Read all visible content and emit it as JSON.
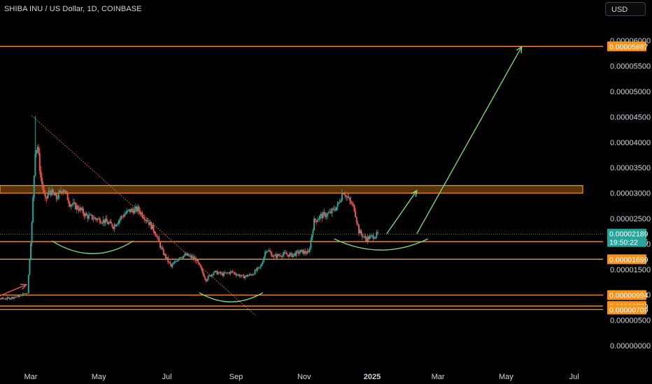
{
  "header": {
    "title": "SHIBA INU / US Dollar, 1D, COINBASE",
    "currency_button": "USD"
  },
  "colors": {
    "up": "#26a69a",
    "down": "#ef5350",
    "level": "#f7931a",
    "arrow_green": "#7bd67b",
    "trendline": "#e8772e",
    "price_line": "#26a69a"
  },
  "chart_data": {
    "type": "candlestick",
    "y_ticks": [
      "0.00006000",
      "0.00005500",
      "0.00005000",
      "0.00004500",
      "0.00004000",
      "0.00003500",
      "0.00003000",
      "0.00002500",
      "0.00002000",
      "0.00001500",
      "0.00001000",
      "0.00000500",
      "0.00000000"
    ],
    "x_ticks": [
      {
        "label": "Mar",
        "date": "2024-03-01",
        "bold": false
      },
      {
        "label": "May",
        "date": "2024-05-01",
        "bold": false
      },
      {
        "label": "Jul",
        "date": "2024-07-01",
        "bold": false
      },
      {
        "label": "Sep",
        "date": "2024-09-01",
        "bold": false
      },
      {
        "label": "Nov",
        "date": "2024-11-01",
        "bold": false
      },
      {
        "label": "2025",
        "date": "2025-01-01",
        "bold": true
      },
      {
        "label": "Mar",
        "date": "2025-03-01",
        "bold": false
      },
      {
        "label": "May",
        "date": "2025-05-01",
        "bold": false
      },
      {
        "label": "Jul",
        "date": "2025-07-01",
        "bold": false
      }
    ],
    "levels": [
      {
        "label": "0.00005887",
        "value": 5.887e-05
      },
      {
        "label": "0.00002046",
        "value": 2.046e-05
      },
      {
        "label": "0.00001699",
        "value": 1.699e-05
      },
      {
        "label": "0.00000994",
        "value": 9.94e-06
      },
      {
        "label": "0.00000779",
        "value": 7.79e-06
      },
      {
        "label": "0.00000709",
        "value": 7.09e-06
      }
    ],
    "resistance_zone": {
      "low": 3e-05,
      "high": 3.15e-05
    },
    "current_price": {
      "label": "0.00002189",
      "value": 2.189e-05,
      "countdown": "19:50:22"
    },
    "price_path": [
      [
        "2024-01-15",
        9e-06
      ],
      [
        "2024-02-10",
        9.3e-06
      ],
      [
        "2024-02-20",
        9.8e-06
      ],
      [
        "2024-02-27",
        1.05e-05
      ],
      [
        "2024-03-02",
        2.4e-05
      ],
      [
        "2024-03-05",
        3.85e-05
      ],
      [
        "2024-03-07",
        3.92e-05
      ],
      [
        "2024-03-10",
        3.3e-05
      ],
      [
        "2024-03-14",
        2.85e-05
      ],
      [
        "2024-03-18",
        3.05e-05
      ],
      [
        "2024-03-24",
        2.9e-05
      ],
      [
        "2024-03-30",
        3.1e-05
      ],
      [
        "2024-04-05",
        2.8e-05
      ],
      [
        "2024-04-13",
        2.7e-05
      ],
      [
        "2024-04-20",
        2.55e-05
      ],
      [
        "2024-04-28",
        2.5e-05
      ],
      [
        "2024-05-06",
        2.45e-05
      ],
      [
        "2024-05-14",
        2.35e-05
      ],
      [
        "2024-05-22",
        2.55e-05
      ],
      [
        "2024-05-28",
        2.65e-05
      ],
      [
        "2024-06-05",
        2.68e-05
      ],
      [
        "2024-06-13",
        2.48e-05
      ],
      [
        "2024-06-20",
        2.25e-05
      ],
      [
        "2024-06-27",
        1.85e-05
      ],
      [
        "2024-07-05",
        1.55e-05
      ],
      [
        "2024-07-12",
        1.75e-05
      ],
      [
        "2024-07-19",
        1.78e-05
      ],
      [
        "2024-07-27",
        1.7e-05
      ],
      [
        "2024-08-05",
        1.3e-05
      ],
      [
        "2024-08-12",
        1.45e-05
      ],
      [
        "2024-08-20",
        1.4e-05
      ],
      [
        "2024-08-28",
        1.45e-05
      ],
      [
        "2024-09-07",
        1.35e-05
      ],
      [
        "2024-09-15",
        1.4e-05
      ],
      [
        "2024-09-23",
        1.55e-05
      ],
      [
        "2024-09-28",
        1.9e-05
      ],
      [
        "2024-10-05",
        1.75e-05
      ],
      [
        "2024-10-13",
        1.8e-05
      ],
      [
        "2024-10-21",
        1.78e-05
      ],
      [
        "2024-10-29",
        1.85e-05
      ],
      [
        "2024-11-05",
        1.82e-05
      ],
      [
        "2024-11-10",
        2.45e-05
      ],
      [
        "2024-11-16",
        2.55e-05
      ],
      [
        "2024-11-24",
        2.6e-05
      ],
      [
        "2024-12-01",
        2.75e-05
      ],
      [
        "2024-12-06",
        3.05e-05
      ],
      [
        "2024-12-10",
        2.9e-05
      ],
      [
        "2024-12-16",
        2.7e-05
      ],
      [
        "2024-12-20",
        2.25e-05
      ],
      [
        "2024-12-26",
        2.1e-05
      ],
      [
        "2025-01-02",
        2.15e-05
      ],
      [
        "2025-01-06",
        2.19e-05
      ]
    ],
    "annotations": {
      "curves": [
        {
          "from": [
            "2024-03-20",
            2.06e-05
          ],
          "to": [
            "2024-06-01",
            2.06e-05
          ],
          "depth": 2.5e-06
        },
        {
          "from": [
            "2024-07-30",
            1.04e-05
          ],
          "to": [
            "2024-09-25",
            1.04e-05
          ],
          "depth": 1.8e-06
        },
        {
          "from": [
            "2024-11-28",
            2.1e-05
          ],
          "to": [
            "2025-02-20",
            2.1e-05
          ],
          "depth": 2.2e-06
        }
      ],
      "arrows": [
        {
          "from": [
            "2025-01-14",
            2.2e-05
          ],
          "to": [
            "2025-02-10",
            3.05e-05
          ],
          "color": "#7bd67b"
        },
        {
          "from": [
            "2025-02-10",
            2.2e-05
          ],
          "to": [
            "2025-05-15",
            5.88e-05
          ],
          "color": "#7bd67b"
        },
        {
          "from": [
            "2024-01-30",
            9.5e-06
          ],
          "to": [
            "2024-02-26",
            1.2e-05
          ],
          "color": "#ef5350"
        }
      ],
      "trendline": {
        "from": [
          "2024-03-02",
          4.52e-05
        ],
        "to": [
          "2024-09-18",
          6e-06
        ]
      }
    }
  }
}
